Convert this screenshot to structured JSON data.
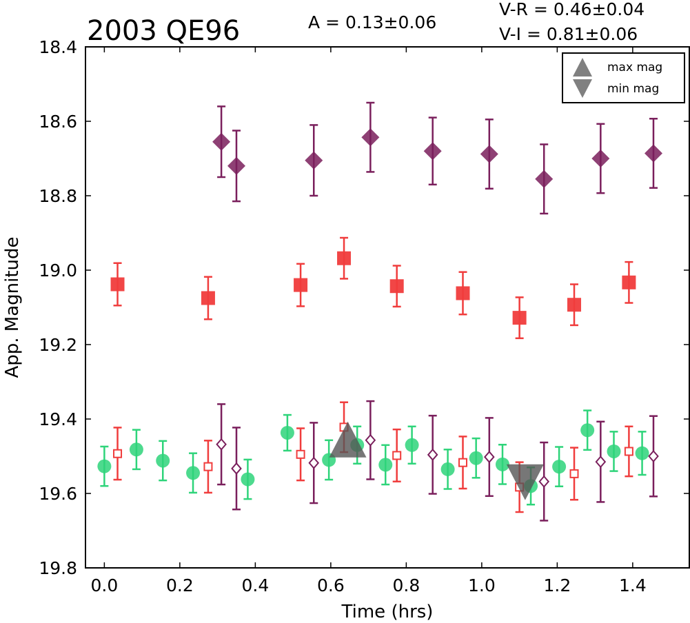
{
  "chart_data": {
    "type": "scatter",
    "title": "2003 QE96",
    "annotations": {
      "amplitude": "A  = 0.13±0.06",
      "vr": "V-R = 0.46±0.04",
      "vi": "V-I  = 0.81±0.06"
    },
    "xlabel": "Time (hrs)",
    "ylabel": "App. Magnitude",
    "xlim": [
      -0.05,
      1.55
    ],
    "ylim": [
      19.8,
      18.4
    ],
    "y_inverted": true,
    "grid": false,
    "xticks": [
      "0.0",
      "0.2",
      "0.4",
      "0.6",
      "0.8",
      "1.0",
      "1.2",
      "1.4"
    ],
    "xtick_values": [
      0.0,
      0.2,
      0.4,
      0.6,
      0.8,
      1.0,
      1.2,
      1.4
    ],
    "yticks": [
      "18.4",
      "18.6",
      "18.8",
      "19.0",
      "19.2",
      "19.4",
      "19.6",
      "19.8"
    ],
    "ytick_values": [
      18.4,
      18.6,
      18.8,
      19.0,
      19.2,
      19.4,
      19.6,
      19.8
    ],
    "legend": {
      "placement": "top-right",
      "entries": [
        "max mag",
        "min mag"
      ]
    },
    "series": [
      {
        "marker": "diamond",
        "filled": true,
        "color": "#7a1f5c",
        "points": [
          {
            "x": 0.31,
            "y": 18.655,
            "err": 0.095
          },
          {
            "x": 0.35,
            "y": 18.72,
            "err": 0.095
          },
          {
            "x": 0.555,
            "y": 18.705,
            "err": 0.095
          },
          {
            "x": 0.705,
            "y": 18.643,
            "err": 0.093
          },
          {
            "x": 0.87,
            "y": 18.68,
            "err": 0.09
          },
          {
            "x": 1.02,
            "y": 18.688,
            "err": 0.093
          },
          {
            "x": 1.165,
            "y": 18.755,
            "err": 0.093
          },
          {
            "x": 1.315,
            "y": 18.7,
            "err": 0.093
          },
          {
            "x": 1.455,
            "y": 18.686,
            "err": 0.093
          }
        ]
      },
      {
        "marker": "square",
        "filled": true,
        "color": "#f03c3c",
        "points": [
          {
            "x": 0.035,
            "y": 19.038,
            "err": 0.057
          },
          {
            "x": 0.275,
            "y": 19.075,
            "err": 0.057
          },
          {
            "x": 0.52,
            "y": 19.04,
            "err": 0.057
          },
          {
            "x": 0.635,
            "y": 18.968,
            "err": 0.055
          },
          {
            "x": 0.775,
            "y": 19.043,
            "err": 0.055
          },
          {
            "x": 0.95,
            "y": 19.062,
            "err": 0.057
          },
          {
            "x": 1.1,
            "y": 19.128,
            "err": 0.055
          },
          {
            "x": 1.245,
            "y": 19.093,
            "err": 0.055
          },
          {
            "x": 1.39,
            "y": 19.033,
            "err": 0.055
          }
        ]
      },
      {
        "marker": "circle",
        "filled": true,
        "color": "#2ed47a",
        "points": [
          {
            "x": 0.0,
            "y": 19.527,
            "err": 0.053
          },
          {
            "x": 0.085,
            "y": 19.482,
            "err": 0.053
          },
          {
            "x": 0.155,
            "y": 19.512,
            "err": 0.053
          },
          {
            "x": 0.235,
            "y": 19.545,
            "err": 0.053
          },
          {
            "x": 0.38,
            "y": 19.562,
            "err": 0.053
          },
          {
            "x": 0.485,
            "y": 19.437,
            "err": 0.048
          },
          {
            "x": 0.595,
            "y": 19.51,
            "err": 0.053
          },
          {
            "x": 0.67,
            "y": 19.47,
            "err": 0.05
          },
          {
            "x": 0.745,
            "y": 19.523,
            "err": 0.053
          },
          {
            "x": 0.815,
            "y": 19.47,
            "err": 0.05
          },
          {
            "x": 0.91,
            "y": 19.535,
            "err": 0.053
          },
          {
            "x": 0.985,
            "y": 19.505,
            "err": 0.053
          },
          {
            "x": 1.055,
            "y": 19.522,
            "err": 0.053
          },
          {
            "x": 1.13,
            "y": 19.58,
            "err": 0.05
          },
          {
            "x": 1.205,
            "y": 19.528,
            "err": 0.053
          },
          {
            "x": 1.28,
            "y": 19.43,
            "err": 0.053
          },
          {
            "x": 1.35,
            "y": 19.487,
            "err": 0.053
          },
          {
            "x": 1.425,
            "y": 19.492,
            "err": 0.058
          }
        ]
      },
      {
        "marker": "square",
        "filled": false,
        "color": "#f03c3c",
        "points": [
          {
            "x": 0.035,
            "y": 19.493,
            "err": 0.07
          },
          {
            "x": 0.275,
            "y": 19.528,
            "err": 0.07
          },
          {
            "x": 0.52,
            "y": 19.495,
            "err": 0.07
          },
          {
            "x": 0.635,
            "y": 19.422,
            "err": 0.067
          },
          {
            "x": 0.775,
            "y": 19.498,
            "err": 0.07
          },
          {
            "x": 0.95,
            "y": 19.517,
            "err": 0.07
          },
          {
            "x": 1.1,
            "y": 19.583,
            "err": 0.067
          },
          {
            "x": 1.245,
            "y": 19.547,
            "err": 0.07
          },
          {
            "x": 1.39,
            "y": 19.487,
            "err": 0.067
          }
        ]
      },
      {
        "marker": "diamond",
        "filled": false,
        "color": "#7a1f5c",
        "points": [
          {
            "x": 0.31,
            "y": 19.468,
            "err": 0.108
          },
          {
            "x": 0.35,
            "y": 19.533,
            "err": 0.11
          },
          {
            "x": 0.555,
            "y": 19.518,
            "err": 0.108
          },
          {
            "x": 0.705,
            "y": 19.457,
            "err": 0.105
          },
          {
            "x": 0.87,
            "y": 19.496,
            "err": 0.105
          },
          {
            "x": 1.02,
            "y": 19.502,
            "err": 0.105
          },
          {
            "x": 1.165,
            "y": 19.568,
            "err": 0.105
          },
          {
            "x": 1.315,
            "y": 19.515,
            "err": 0.108
          },
          {
            "x": 1.455,
            "y": 19.5,
            "err": 0.108
          }
        ]
      }
    ],
    "extrema_markers": [
      {
        "kind": "max",
        "x": 0.645,
        "y": 19.455,
        "color": "#555555"
      },
      {
        "kind": "min",
        "x": 1.115,
        "y": 19.57,
        "color": "#555555"
      }
    ]
  }
}
